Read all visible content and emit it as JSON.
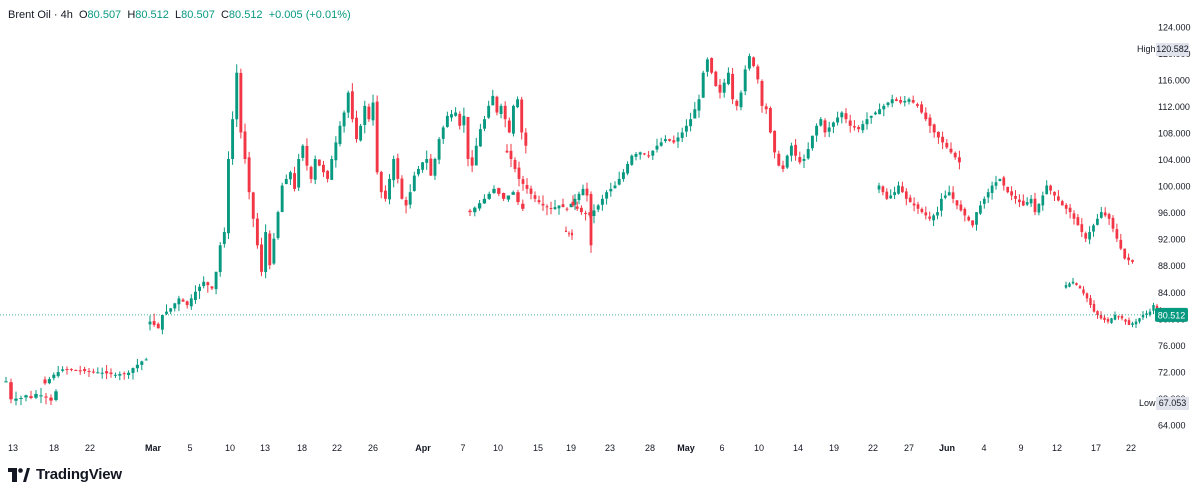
{
  "legend": {
    "symbol": "Brent Oil",
    "separator": "·",
    "interval": "4h",
    "open_label": "O",
    "open": "80.507",
    "high_label": "H",
    "high": "80.512",
    "low_label": "L",
    "low": "80.507",
    "close_label": "C",
    "close": "80.512",
    "change": "+0.005 (+0.01%)"
  },
  "brand": {
    "name": "TradingView"
  },
  "colors": {
    "up": "#089981",
    "down": "#f23645",
    "price_line": "#089981",
    "axis_text": "#131722",
    "marker_bg": "#e0e3eb"
  },
  "chart_data": {
    "type": "candlestick",
    "y_axis": {
      "min": 62,
      "max": 126,
      "ticks": [
        64,
        68,
        72,
        76,
        80,
        84,
        88,
        92,
        96,
        100,
        104,
        108,
        112,
        116,
        120,
        124
      ],
      "tick_labels": [
        "64.000",
        "68.000",
        "72.000",
        "76.000",
        "80.000",
        "84.000",
        "88.000",
        "92.000",
        "96.000",
        "100.000",
        "104.000",
        "108.000",
        "112.000",
        "116.000",
        "120.000",
        "124.000"
      ]
    },
    "x_axis": {
      "labels": [
        "13",
        "18",
        "22",
        "Mar",
        "5",
        "10",
        "13",
        "18",
        "22",
        "26",
        "Apr",
        "7",
        "10",
        "15",
        "19",
        "23",
        "28",
        "May",
        "6",
        "10",
        "14",
        "19",
        "22",
        "27",
        "Jun",
        "4",
        "9",
        "12",
        "17",
        "22"
      ],
      "bold": [
        "Mar",
        "Apr",
        "May",
        "Jun"
      ]
    },
    "markers": {
      "high_label": "High",
      "high_value": 120.582,
      "high_text": "120.582",
      "low_label": "Low",
      "low_value": 67.053,
      "low_text": "67.053",
      "last_value": 80.512,
      "last_text": "80.512"
    },
    "series": [
      {
        "anchors": [
          [
            0,
            70.5
          ],
          [
            1,
            67.8
          ],
          [
            3,
            68.0
          ],
          [
            4,
            68.4
          ],
          [
            5,
            68.0
          ],
          [
            6,
            68.6
          ],
          [
            8,
            68.2
          ],
          [
            9,
            67.6
          ],
          [
            10,
            69.0
          ]
        ]
      },
      {
        "anchors": [
          [
            0,
            70.2
          ],
          [
            2,
            71.5
          ],
          [
            4,
            72.3
          ],
          [
            7,
            72.2
          ],
          [
            10,
            72.0
          ],
          [
            13,
            71.8
          ],
          [
            16,
            71.5
          ],
          [
            19,
            71.8
          ],
          [
            20,
            72.5
          ],
          [
            22,
            73.5
          ],
          [
            23,
            73.8
          ]
        ]
      },
      {
        "anchors": [
          [
            0,
            79.5
          ],
          [
            2,
            78.5
          ],
          [
            3,
            80.5
          ],
          [
            5,
            81.5
          ],
          [
            7,
            83.0
          ],
          [
            9,
            82.0
          ],
          [
            11,
            84.0
          ],
          [
            13,
            85.5
          ],
          [
            15,
            84.5
          ],
          [
            16,
            87.0
          ],
          [
            17,
            91.0
          ],
          [
            18,
            93.0
          ],
          [
            19,
            104.0
          ],
          [
            20,
            110.0
          ],
          [
            21,
            117.0
          ],
          [
            22,
            108.0
          ],
          [
            23,
            104.0
          ],
          [
            24,
            99.0
          ],
          [
            25,
            95.0
          ],
          [
            26,
            91.0
          ],
          [
            27,
            87.0
          ],
          [
            28,
            93.0
          ],
          [
            29,
            88.0
          ],
          [
            30,
            92.0
          ],
          [
            31,
            96.0
          ],
          [
            32,
            100.0
          ],
          [
            34,
            102.0
          ],
          [
            35,
            99.5
          ],
          [
            36,
            104.0
          ],
          [
            37,
            106.0
          ],
          [
            38,
            103.0
          ],
          [
            39,
            101.0
          ],
          [
            40,
            104.0
          ],
          [
            42,
            102.0
          ],
          [
            43,
            101.0
          ],
          [
            44,
            104.0
          ],
          [
            46,
            109.0
          ],
          [
            47,
            111.0
          ],
          [
            48,
            114.0
          ],
          [
            49,
            110.0
          ],
          [
            50,
            107.0
          ],
          [
            51,
            109.0
          ],
          [
            52,
            112.0
          ],
          [
            53,
            110.0
          ],
          [
            54,
            112.5
          ],
          [
            55,
            102.0
          ],
          [
            56,
            99.0
          ],
          [
            57,
            98.0
          ],
          [
            58,
            101.0
          ],
          [
            59,
            104.0
          ],
          [
            60,
            101.0
          ],
          [
            61,
            98.0
          ],
          [
            62,
            97.0
          ],
          [
            63,
            99.0
          ],
          [
            64,
            101.5
          ],
          [
            66,
            103.5
          ],
          [
            67,
            104.0
          ],
          [
            68,
            101.5
          ],
          [
            69,
            104.0
          ],
          [
            70,
            107.0
          ],
          [
            72,
            110.5
          ],
          [
            74,
            111.0
          ],
          [
            75,
            109.0
          ],
          [
            76,
            110.5
          ],
          [
            77,
            104.0
          ],
          [
            78,
            103.0
          ],
          [
            79,
            106.0
          ],
          [
            80,
            108.5
          ],
          [
            81,
            110.0
          ],
          [
            82,
            112.0
          ],
          [
            83,
            113.5
          ],
          [
            84,
            111.0
          ],
          [
            85,
            112.0
          ],
          [
            86,
            110.0
          ],
          [
            87,
            108.0
          ],
          [
            88,
            112.0
          ],
          [
            89,
            113.0
          ],
          [
            90,
            108.0
          ],
          [
            91,
            106.0
          ]
        ]
      },
      {
        "anchors": [
          [
            0,
            96.0
          ],
          [
            3,
            98.0
          ],
          [
            5,
            99.5
          ],
          [
            7,
            98.0
          ],
          [
            9,
            99.0
          ],
          [
            10,
            97.5
          ],
          [
            11,
            96.5
          ]
        ]
      },
      {
        "anchors": [
          [
            0,
            105.0
          ],
          [
            1,
            104.0
          ],
          [
            3,
            101.0
          ],
          [
            5,
            99.5
          ],
          [
            7,
            98.0
          ],
          [
            9,
            97.0
          ],
          [
            11,
            96.5
          ],
          [
            13,
            97.0
          ],
          [
            15,
            96.5
          ],
          [
            17,
            98.0
          ],
          [
            19,
            99.5
          ],
          [
            20,
            98.5
          ],
          [
            21,
            91.0
          ]
        ]
      },
      {
        "anchors": [
          [
            0,
            93.0
          ],
          [
            2,
            92.5
          ]
        ]
      },
      {
        "anchors": [
          [
            0,
            97.0
          ],
          [
            2,
            96.0
          ],
          [
            4,
            95.5
          ],
          [
            6,
            97.0
          ],
          [
            8,
            99.0
          ],
          [
            10,
            100.0
          ],
          [
            12,
            102.0
          ],
          [
            14,
            104.5
          ],
          [
            16,
            105.0
          ],
          [
            18,
            104.5
          ],
          [
            20,
            106.0
          ],
          [
            22,
            107.0
          ],
          [
            24,
            106.5
          ],
          [
            26,
            108.0
          ],
          [
            28,
            110.0
          ],
          [
            30,
            113.0
          ],
          [
            31,
            117.0
          ],
          [
            32,
            119.0
          ],
          [
            33,
            117.0
          ],
          [
            34,
            115.0
          ],
          [
            35,
            114.0
          ],
          [
            36,
            115.5
          ],
          [
            37,
            117.0
          ],
          [
            38,
            113.0
          ],
          [
            39,
            112.0
          ],
          [
            40,
            114.0
          ],
          [
            41,
            117.5
          ],
          [
            42,
            119.5
          ],
          [
            43,
            118.0
          ],
          [
            44,
            116.0
          ],
          [
            45,
            112.0
          ],
          [
            46,
            111.5
          ],
          [
            47,
            108.0
          ],
          [
            48,
            105.0
          ],
          [
            49,
            103.0
          ],
          [
            50,
            102.5
          ],
          [
            51,
            104.5
          ],
          [
            52,
            106.0
          ],
          [
            53,
            104.5
          ],
          [
            54,
            103.5
          ],
          [
            55,
            104.0
          ],
          [
            56,
            105.5
          ],
          [
            57,
            107.5
          ],
          [
            58,
            109.0
          ],
          [
            59,
            110.0
          ],
          [
            60,
            108.0
          ],
          [
            62,
            109.5
          ],
          [
            64,
            111.0
          ],
          [
            66,
            109.0
          ],
          [
            68,
            108.5
          ],
          [
            70,
            110.0
          ],
          [
            72,
            111.0
          ],
          [
            74,
            112.0
          ],
          [
            76,
            113.0
          ],
          [
            78,
            112.5
          ],
          [
            80,
            113.0
          ],
          [
            82,
            112.0
          ],
          [
            84,
            110.0
          ],
          [
            86,
            108.0
          ],
          [
            88,
            106.5
          ],
          [
            90,
            105.0
          ],
          [
            92,
            103.5
          ]
        ]
      },
      {
        "anchors": [
          [
            0,
            100.0
          ],
          [
            2,
            98.0
          ],
          [
            4,
            99.0
          ],
          [
            5,
            100.0
          ],
          [
            7,
            98.0
          ],
          [
            9,
            97.0
          ],
          [
            11,
            96.0
          ],
          [
            13,
            95.0
          ],
          [
            15,
            96.0
          ],
          [
            16,
            98.0
          ],
          [
            18,
            99.0
          ],
          [
            20,
            97.0
          ],
          [
            22,
            95.5
          ],
          [
            24,
            94.0
          ],
          [
            25,
            96.0
          ],
          [
            27,
            98.0
          ],
          [
            29,
            100.0
          ],
          [
            31,
            101.0
          ],
          [
            33,
            99.0
          ],
          [
            35,
            98.0
          ],
          [
            37,
            97.0
          ],
          [
            39,
            98.0
          ],
          [
            40,
            96.0
          ],
          [
            42,
            98.5
          ],
          [
            43,
            100.0
          ],
          [
            45,
            98.5
          ],
          [
            47,
            97.0
          ],
          [
            49,
            96.0
          ],
          [
            51,
            94.0
          ],
          [
            53,
            92.0
          ],
          [
            55,
            94.0
          ],
          [
            57,
            96.0
          ],
          [
            59,
            95.0
          ],
          [
            61,
            92.0
          ],
          [
            63,
            89.0
          ],
          [
            65,
            88.5
          ]
        ]
      },
      {
        "anchors": [
          [
            0,
            85.0
          ],
          [
            2,
            85.5
          ],
          [
            4,
            84.5
          ],
          [
            6,
            83.0
          ],
          [
            8,
            81.0
          ],
          [
            10,
            80.0
          ],
          [
            12,
            79.5
          ],
          [
            14,
            80.5
          ],
          [
            16,
            80.0
          ],
          [
            18,
            79.0
          ],
          [
            20,
            79.5
          ],
          [
            22,
            80.5
          ],
          [
            24,
            81.0
          ],
          [
            25,
            82.0
          ],
          [
            26,
            81.0
          ],
          [
            27,
            80.5
          ]
        ]
      }
    ]
  }
}
